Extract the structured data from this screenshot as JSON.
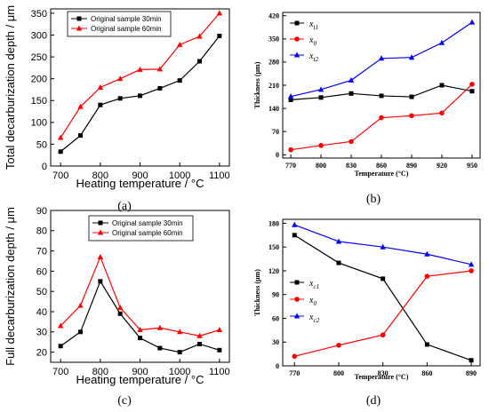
{
  "chart_data": [
    {
      "panel_label": "(a)",
      "type": "line",
      "ylabel": "Total decarburization depth / μm",
      "xlabel": "Heating temperature / °C",
      "x": [
        700,
        750,
        800,
        850,
        900,
        950,
        1000,
        1050,
        1100
      ],
      "xlim": [
        675,
        1125
      ],
      "ylim": [
        0,
        360
      ],
      "xticks": [
        "700",
        "800",
        "900",
        "1000",
        "1100"
      ],
      "yticks": [
        "0",
        "50",
        "100",
        "150",
        "200",
        "250",
        "300",
        "350"
      ],
      "legend_position": "top-left",
      "series": [
        {
          "name": "Original sample 30min",
          "color": "#000000",
          "marker": "square",
          "values": [
            33,
            70,
            140,
            155,
            161,
            178,
            196,
            240,
            298
          ]
        },
        {
          "name": "Original sample 60min",
          "color": "#ff0000",
          "marker": "triangle",
          "values": [
            65,
            136,
            180,
            200,
            221,
            222,
            278,
            297,
            350
          ]
        }
      ]
    },
    {
      "panel_label": "(b)",
      "type": "line",
      "ylabel": "Thickness (μm)",
      "xlabel": "Temperature (°C)",
      "x": [
        770,
        800,
        830,
        860,
        890,
        920,
        950
      ],
      "xlim": [
        762,
        958
      ],
      "ylim": [
        -10,
        430
      ],
      "xticks": [
        "770",
        "800",
        "830",
        "860",
        "890",
        "920",
        "950"
      ],
      "yticks": [
        "0",
        "70",
        "140",
        "210",
        "280",
        "350",
        "420"
      ],
      "legend_position": "top-left",
      "series": [
        {
          "name_base": "x",
          "name_sub": "t1",
          "color": "#000000",
          "marker": "square",
          "values": [
            166,
            173,
            185,
            178,
            175,
            210,
            192
          ]
        },
        {
          "name_base": "x",
          "name_sub": "0",
          "color": "#ff0000",
          "marker": "circle",
          "values": [
            15,
            28,
            40,
            112,
            118,
            126,
            213
          ]
        },
        {
          "name_base": "x",
          "name_sub": "t2",
          "color": "#0000ff",
          "marker": "triangle",
          "values": [
            176,
            197,
            225,
            291,
            294,
            338,
            400
          ]
        }
      ]
    },
    {
      "panel_label": "(c)",
      "type": "line",
      "ylabel": "Full decarburization depth / μm",
      "xlabel": "Heating temperature / °C",
      "x": [
        700,
        750,
        800,
        850,
        900,
        950,
        1000,
        1050,
        1100
      ],
      "xlim": [
        675,
        1125
      ],
      "ylim": [
        15,
        90
      ],
      "xticks": [
        "700",
        "800",
        "900",
        "1000",
        "1100"
      ],
      "yticks": [
        "20",
        "30",
        "40",
        "50",
        "60",
        "70",
        "80",
        "90"
      ],
      "legend_position": "top-right",
      "series": [
        {
          "name": "Original sample 30min",
          "color": "#000000",
          "marker": "square",
          "values": [
            23,
            30,
            55,
            39,
            27,
            22,
            20,
            24,
            21
          ]
        },
        {
          "name": "Original sample 60min",
          "color": "#ff0000",
          "marker": "triangle",
          "values": [
            33,
            43,
            67,
            42,
            31,
            32,
            30,
            28,
            31
          ]
        }
      ]
    },
    {
      "panel_label": "(d)",
      "type": "line",
      "ylabel": "Thickness (μm)",
      "xlabel": "Temperature (°C)",
      "x": [
        770,
        800,
        830,
        860,
        890
      ],
      "xlim": [
        762,
        896
      ],
      "ylim": [
        0,
        185
      ],
      "xticks": [
        "770",
        "800",
        "830",
        "860",
        "890"
      ],
      "yticks": [
        "0",
        "30",
        "60",
        "90",
        "120",
        "150",
        "180"
      ],
      "legend_position": "middle-left",
      "series": [
        {
          "name_base": "x",
          "name_sub": "c1",
          "color": "#000000",
          "marker": "square",
          "values": [
            165,
            130,
            110,
            27,
            7
          ]
        },
        {
          "name_base": "x",
          "name_sub": "0",
          "color": "#ff0000",
          "marker": "circle",
          "values": [
            12,
            26,
            39,
            113,
            120
          ]
        },
        {
          "name_base": "x",
          "name_sub": "c2",
          "color": "#0000ff",
          "marker": "triangle",
          "values": [
            178,
            157,
            150,
            141,
            128
          ]
        }
      ]
    }
  ]
}
